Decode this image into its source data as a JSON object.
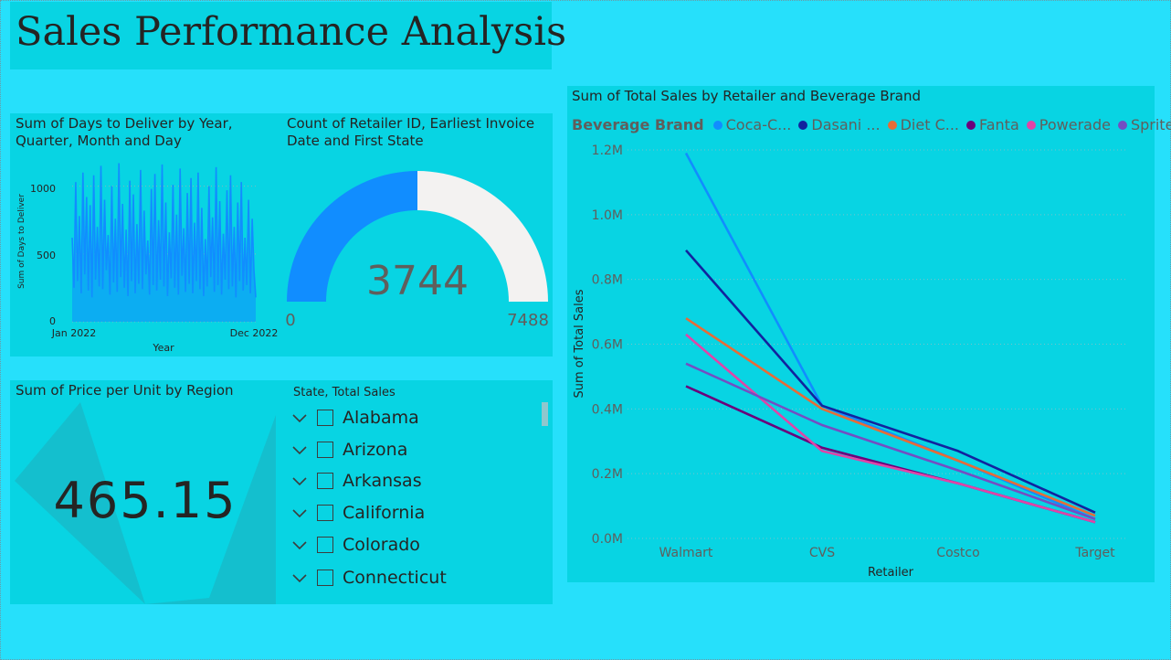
{
  "page": {
    "title": "Sales Performance Analysis"
  },
  "days_chart": {
    "title": "Sum of Days to Deliver by Year, Quarter, Month and Day",
    "ylabel": "Sum of Days to Deliver",
    "xlabel": "Year",
    "x_ticks": [
      "Jan 2022",
      "Dec 2022"
    ],
    "y_ticks": [
      "0",
      "500",
      "1000"
    ]
  },
  "gauge": {
    "title": "Count of Retailer ID, Earliest Invoice Date and First State",
    "value": 3744,
    "value_label": "3744",
    "min_label": "0",
    "max_label": "7488",
    "fill_color": "#118dff",
    "empty_color": "#f3f2f1"
  },
  "kpi": {
    "title": "Sum of Price per Unit by Region",
    "value": "465.15"
  },
  "slicer": {
    "header": "State, Total Sales",
    "items": [
      "Alabama",
      "Arizona",
      "Arkansas",
      "California",
      "Colorado",
      "Connecticut"
    ]
  },
  "chart_data": [
    {
      "type": "area",
      "title": "Sum of Days to Deliver by Year, Quarter, Month and Day",
      "xlabel": "Year",
      "ylabel": "Sum of Days to Deliver",
      "x_range": [
        "Jan 2022",
        "Dec 2022"
      ],
      "ylim": [
        0,
        1200
      ],
      "values": [
        620,
        250,
        1030,
        300,
        780,
        210,
        1100,
        350,
        920,
        230,
        860,
        180,
        1080,
        310,
        700,
        260,
        1150,
        240,
        900,
        380,
        640,
        200,
        1000,
        290,
        760,
        220,
        1170,
        330,
        870,
        250,
        680,
        190,
        1040,
        300,
        940,
        210,
        720,
        280,
        1120,
        240,
        820,
        350,
        600,
        200,
        980,
        270,
        1090,
        230,
        750,
        310,
        1160,
        260,
        880,
        190,
        660,
        320,
        1010,
        250,
        790,
        200,
        1130,
        340,
        690,
        220,
        950,
        280,
        1060,
        210,
        730,
        300,
        1100,
        240,
        840,
        190,
        610,
        260,
        1000,
        330,
        770,
        220,
        1140,
        270,
        890,
        200,
        650,
        310,
        970,
        240,
        1080,
        260,
        700,
        180,
        880,
        300,
        1030,
        230,
        620,
        270,
        900,
        210,
        760,
        380,
        180
      ]
    },
    {
      "type": "line",
      "title": "Sum of Total Sales by Retailer and Beverage Brand",
      "xlabel": "Retailer",
      "ylabel": "Sum of Total Sales",
      "legend_title": "Beverage Brand",
      "legend_position": "top-left",
      "categories": [
        "Walmart",
        "CVS",
        "Costco",
        "Target"
      ],
      "y_ticks": [
        "0.0M",
        "0.2M",
        "0.4M",
        "0.6M",
        "0.8M",
        "1.0M",
        "1.2M"
      ],
      "ylim": [
        0,
        1.2
      ],
      "grid": true,
      "series": [
        {
          "name": "Coca-Cola",
          "legend_label": "Coca-C...",
          "color": "#118dff",
          "values": [
            1.19,
            0.41,
            0.24,
            0.06
          ]
        },
        {
          "name": "Dasani",
          "legend_label": "Dasani ...",
          "color": "#12239e",
          "values": [
            0.89,
            0.41,
            0.27,
            0.08
          ]
        },
        {
          "name": "Diet Coke",
          "legend_label": "Diet C...",
          "color": "#e66c37",
          "values": [
            0.68,
            0.4,
            0.24,
            0.07
          ]
        },
        {
          "name": "Fanta",
          "legend_label": "Fanta",
          "color": "#6b007b",
          "values": [
            0.47,
            0.28,
            0.17,
            0.05
          ]
        },
        {
          "name": "Powerade",
          "legend_label": "Powerade",
          "color": "#e044a7",
          "values": [
            0.63,
            0.27,
            0.17,
            0.05
          ]
        },
        {
          "name": "Sprite",
          "legend_label": "Sprite",
          "color": "#744ec2",
          "values": [
            0.54,
            0.35,
            0.21,
            0.06
          ]
        }
      ]
    }
  ]
}
